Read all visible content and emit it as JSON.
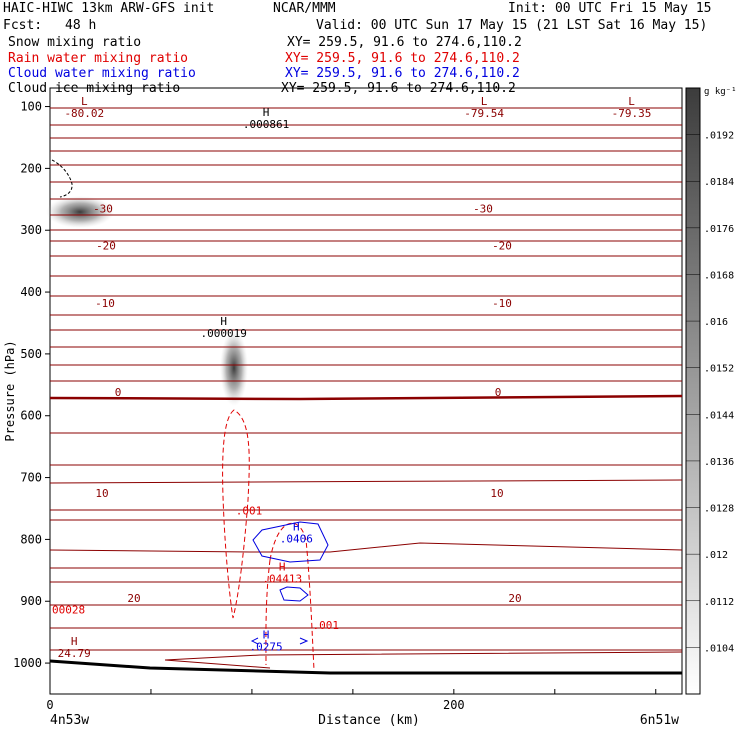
{
  "header": {
    "model": "HAIC-HIWC 13km ARW-GFS init",
    "org": "NCAR/MMM",
    "init": "Init: 00 UTC Fri 15 May 15",
    "fcst_label": "Fcst:",
    "fcst_value": "48 h",
    "valid": "Valid: 00 UTC Sun 17 May 15 (21 LST Sat 16 May 15)"
  },
  "fields": [
    {
      "name": "Snow mixing ratio",
      "xy": "XY= 259.5, 91.6 to 274.6,110.2",
      "color": "#000000"
    },
    {
      "name": "Rain water mixing ratio",
      "xy": "XY= 259.5, 91.6 to 274.6,110.2",
      "color": "#e00000"
    },
    {
      "name": "Cloud water mixing ratio",
      "xy": "XY= 259.5, 91.6 to 274.6,110.2",
      "color": "#0000e0"
    },
    {
      "name": "Cloud ice mixing ratio",
      "xy": "XY= 259.5, 91.6 to 274.6,110.2",
      "color": "#000000"
    }
  ],
  "chart_data": {
    "type": "contour cross-section",
    "xlabel": "Distance (km)",
    "ylabel": "Pressure (hPa)",
    "x_endpoints": [
      "4n53w",
      "6n51w"
    ],
    "x_ticks": [
      0,
      200
    ],
    "xlim": [
      0,
      313
    ],
    "y_ticks": [
      100,
      200,
      300,
      400,
      500,
      600,
      700,
      800,
      900,
      1000
    ],
    "ylim": [
      1050,
      70
    ],
    "temperature_contours": [
      {
        "label": "-30",
        "p": 265
      },
      {
        "label": "-20",
        "p": 325
      },
      {
        "label": "-10",
        "p": 418
      },
      {
        "label": "0",
        "p": 562
      },
      {
        "label": "10",
        "p": 725
      },
      {
        "label": "20",
        "p": 895
      }
    ],
    "extrema": [
      {
        "symbol": "L",
        "value": "-80.02",
        "x": 17,
        "p": 117,
        "color": "#8b0000"
      },
      {
        "symbol": "L",
        "value": "-79.54",
        "x": 215,
        "p": 117,
        "color": "#8b0000"
      },
      {
        "symbol": "L",
        "value": "-79.35",
        "x": 288,
        "p": 117,
        "color": "#8b0000"
      },
      {
        "symbol": "H",
        "value": ".000861",
        "x": 107,
        "p": 135,
        "color": "#000000"
      },
      {
        "symbol": "H",
        "value": ".000019",
        "x": 86,
        "p": 473,
        "color": "#000000"
      },
      {
        "symbol": "H",
        "value": "24.79",
        "x": 12,
        "p": 990,
        "color": "#8b0000"
      },
      {
        "symbol": "H",
        "value": ".0406",
        "x": 122,
        "p": 805,
        "color": "#0000e0"
      },
      {
        "symbol": "H",
        "value": ".04413",
        "x": 115,
        "p": 870,
        "color": "#e00000"
      },
      {
        "symbol": "H",
        "value": ".0275",
        "x": 107,
        "p": 980,
        "color": "#0000e0"
      }
    ],
    "contour_labels": [
      {
        "text": ".001",
        "x": 92,
        "p": 760,
        "color": "#e00000"
      },
      {
        "text": ".001",
        "x": 130,
        "p": 945,
        "color": "#e00000"
      },
      {
        "text": "00028",
        "x": 1,
        "p": 920,
        "color": "#e00000"
      }
    ],
    "colorbar": {
      "unit": "g kg⁻¹",
      "labels": [
        ".0192",
        ".0184",
        ".0176",
        ".0168",
        ".016",
        ".0152",
        ".0144",
        ".0136",
        ".0128",
        ".012",
        ".0112",
        ".0104"
      ]
    }
  }
}
